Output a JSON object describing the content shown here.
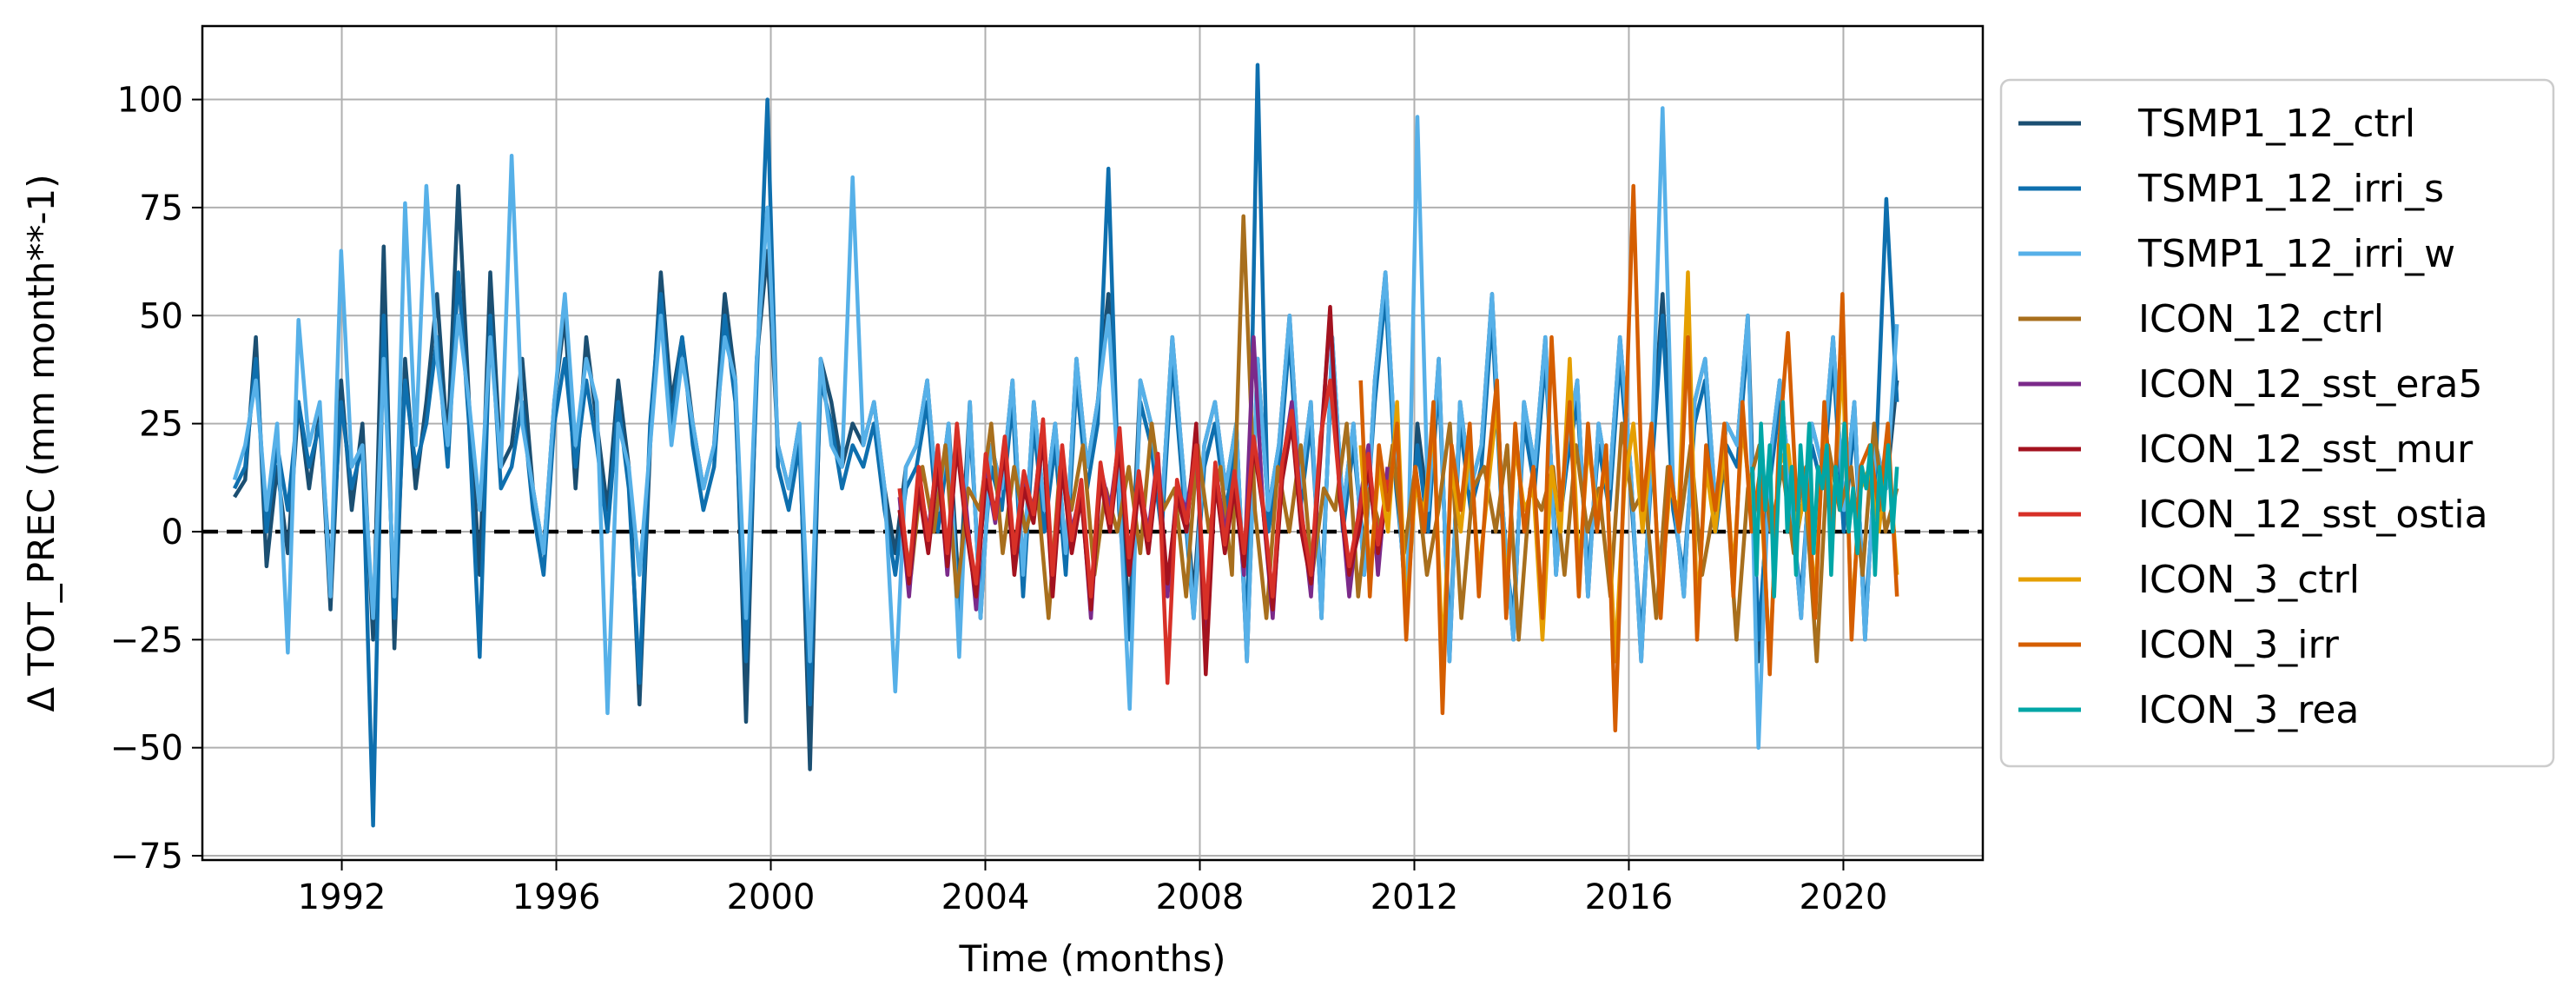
{
  "chart_data": {
    "type": "line",
    "xlabel": "Time (months)",
    "ylabel": "Δ TOT_PREC (mm month**-1)",
    "xlim": [
      1989.4,
      2022.6
    ],
    "ylim": [
      -76,
      117
    ],
    "xticks": [
      1992,
      1996,
      2000,
      2004,
      2008,
      2012,
      2016,
      2020
    ],
    "xtick_labels": [
      "1992",
      "1996",
      "2000",
      "2004",
      "2008",
      "2012",
      "2016",
      "2020"
    ],
    "yticks": [
      -75,
      -50,
      -25,
      0,
      25,
      50,
      75,
      100
    ],
    "ytick_labels": [
      "−75",
      "−50",
      "−25",
      "0",
      "25",
      "50",
      "75",
      "100"
    ],
    "grid": true,
    "zero_line": {
      "y": 0,
      "style": "dashed",
      "color": "#000000"
    },
    "legend": {
      "position": "outside-right"
    },
    "series": [
      {
        "name": "TSMP1_12_ctrl",
        "color": "#1b4f72",
        "x_start": 1990.0,
        "x_end": 2021.0,
        "values": [
          8,
          12,
          45,
          -8,
          15,
          -5,
          30,
          10,
          28,
          -18,
          35,
          5,
          25,
          -25,
          66,
          -27,
          40,
          10,
          30,
          55,
          20,
          80,
          30,
          -10,
          60,
          15,
          20,
          40,
          10,
          -5,
          30,
          50,
          10,
          45,
          25,
          5,
          35,
          15,
          -40,
          20,
          60,
          30,
          45,
          25,
          10,
          20,
          55,
          35,
          -44,
          40,
          65,
          20,
          10,
          25,
          -55,
          40,
          30,
          15,
          25,
          20,
          30,
          10,
          -5,
          15,
          20,
          35,
          5,
          25,
          -15,
          30,
          -20,
          20,
          10,
          35,
          -10,
          30,
          5,
          25,
          -5,
          40,
          15,
          30,
          55,
          10,
          -20,
          35,
          25,
          5,
          45,
          15,
          -15,
          20,
          30,
          10,
          25,
          -30,
          40,
          5,
          20,
          50,
          10,
          30,
          -20,
          45,
          5,
          25,
          -10,
          35,
          60,
          15,
          -20,
          25,
          5,
          40,
          -30,
          30,
          10,
          20,
          55,
          5,
          -25,
          30,
          15,
          45,
          -10,
          20,
          35,
          -15,
          25,
          10,
          45,
          15,
          -30,
          20,
          55,
          10,
          -15,
          30,
          40,
          5,
          25,
          20,
          50,
          -30,
          15,
          35,
          10,
          -20,
          25,
          15,
          45,
          5,
          30,
          -25,
          20,
          10,
          35
        ]
      },
      {
        "name": "TSMP1_12_irri_s",
        "color": "#0e6fae",
        "x_start": 1990.0,
        "x_end": 2021.0,
        "values": [
          10,
          15,
          40,
          0,
          20,
          5,
          30,
          15,
          25,
          -10,
          30,
          10,
          20,
          -68,
          50,
          -20,
          35,
          15,
          25,
          45,
          15,
          60,
          25,
          -29,
          50,
          10,
          15,
          30,
          5,
          -10,
          25,
          40,
          15,
          35,
          20,
          0,
          30,
          10,
          -35,
          25,
          55,
          25,
          45,
          20,
          5,
          15,
          50,
          30,
          -30,
          35,
          100,
          15,
          5,
          20,
          -40,
          35,
          25,
          10,
          20,
          15,
          25,
          5,
          -10,
          10,
          15,
          30,
          0,
          20,
          -20,
          25,
          -15,
          15,
          5,
          30,
          -15,
          25,
          0,
          20,
          -10,
          35,
          10,
          25,
          84,
          5,
          -25,
          30,
          20,
          0,
          40,
          10,
          -20,
          15,
          25,
          5,
          20,
          -25,
          108,
          0,
          15,
          45,
          5,
          25,
          -15,
          40,
          0,
          20,
          -5,
          30,
          55,
          10,
          -15,
          20,
          0,
          35,
          -25,
          25,
          5,
          15,
          50,
          0,
          -20,
          25,
          10,
          40,
          -5,
          15,
          30,
          -10,
          20,
          5,
          40,
          10,
          -25,
          15,
          50,
          5,
          -10,
          25,
          35,
          0,
          20,
          15,
          45,
          -25,
          10,
          30,
          5,
          -15,
          20,
          10,
          40,
          0,
          25,
          -20,
          15,
          77,
          30
        ]
      },
      {
        "name": "TSMP1_12_irri_w",
        "color": "#56b0e8",
        "x_start": 1990.0,
        "x_end": 2021.0,
        "values": [
          12,
          20,
          35,
          5,
          25,
          -28,
          49,
          20,
          30,
          -15,
          65,
          15,
          20,
          -20,
          40,
          -15,
          76,
          20,
          80,
          40,
          20,
          50,
          30,
          5,
          45,
          15,
          87,
          25,
          10,
          -5,
          30,
          55,
          20,
          40,
          30,
          -42,
          25,
          15,
          -10,
          20,
          50,
          20,
          40,
          25,
          10,
          20,
          45,
          35,
          -20,
          40,
          75,
          20,
          10,
          25,
          -30,
          40,
          20,
          15,
          82,
          20,
          30,
          10,
          -37,
          15,
          20,
          35,
          5,
          25,
          -29,
          30,
          -20,
          20,
          10,
          35,
          -10,
          30,
          5,
          25,
          -5,
          40,
          15,
          30,
          50,
          10,
          -41,
          35,
          25,
          5,
          45,
          15,
          -20,
          20,
          30,
          10,
          25,
          -30,
          40,
          5,
          20,
          50,
          10,
          30,
          -20,
          45,
          5,
          25,
          -10,
          35,
          60,
          15,
          -20,
          96,
          5,
          40,
          -30,
          30,
          10,
          20,
          55,
          5,
          -25,
          30,
          15,
          45,
          -10,
          20,
          35,
          -15,
          25,
          10,
          45,
          15,
          -30,
          20,
          98,
          10,
          -15,
          30,
          40,
          5,
          25,
          20,
          50,
          -50,
          15,
          35,
          10,
          -20,
          25,
          15,
          45,
          5,
          30,
          -25,
          20,
          10,
          48
        ]
      },
      {
        "name": "ICON_12_ctrl",
        "color": "#a86f1d",
        "x_start": 2002.4,
        "x_end": 2021.0,
        "values": [
          5,
          -10,
          15,
          0,
          20,
          -15,
          10,
          5,
          25,
          -5,
          15,
          0,
          10,
          -20,
          15,
          5,
          20,
          -10,
          10,
          0,
          15,
          -5,
          25,
          5,
          10,
          -15,
          20,
          0,
          15,
          -10,
          73,
          5,
          -20,
          15,
          0,
          20,
          -10,
          10,
          5,
          25,
          -15,
          10,
          0,
          20,
          -5,
          15,
          -10,
          5,
          25,
          -20,
          10,
          15,
          0,
          20,
          -25,
          10,
          5,
          15,
          -10,
          20,
          0,
          10,
          -15,
          25,
          5,
          10,
          -20,
          15,
          0,
          20,
          -10,
          5,
          15,
          -25,
          10,
          20,
          0,
          15,
          -5,
          10,
          -30,
          20,
          5,
          15,
          -10,
          25,
          0,
          10
        ]
      },
      {
        "name": "ICON_12_sst_era5",
        "color": "#7b2a8a",
        "x_start": 2002.4,
        "x_end": 2011.5,
        "values": [
          8,
          -15,
          12,
          0,
          18,
          -10,
          22,
          5,
          -18,
          15,
          2,
          20,
          -8,
          12,
          5,
          25,
          -12,
          18,
          0,
          10,
          -20,
          15,
          5,
          22,
          -8,
          12,
          0,
          18,
          -15,
          10,
          5,
          20,
          -25,
          15,
          0,
          12,
          -10,
          45,
          5,
          -20,
          15,
          30,
          5,
          -15,
          20,
          50,
          10,
          -15,
          5,
          20,
          -10,
          15
        ]
      },
      {
        "name": "ICON_12_sst_mur",
        "color": "#a3121f",
        "x_start": 2002.4,
        "x_end": 2011.5,
        "values": [
          5,
          -12,
          10,
          -5,
          15,
          -8,
          20,
          0,
          -15,
          12,
          5,
          18,
          -10,
          10,
          2,
          22,
          -15,
          15,
          -5,
          8,
          -18,
          12,
          0,
          20,
          -10,
          10,
          -5,
          15,
          -12,
          8,
          0,
          25,
          -33,
          12,
          -5,
          10,
          -8,
          20,
          5,
          -18,
          12,
          25,
          0,
          -12,
          18,
          52,
          8,
          -10,
          0,
          15,
          -5,
          10
        ]
      },
      {
        "name": "ICON_12_sst_ostia",
        "color": "#d73027",
        "x_start": 2002.4,
        "x_end": 2011.5,
        "values": [
          10,
          -10,
          15,
          -2,
          20,
          -5,
          25,
          2,
          -12,
          18,
          3,
          22,
          -5,
          14,
          4,
          26,
          -10,
          20,
          -2,
          12,
          -15,
          16,
          2,
          24,
          -6,
          14,
          -2,
          18,
          -35,
          12,
          2,
          20,
          -20,
          16,
          -3,
          14,
          -5,
          22,
          6,
          -15,
          16,
          28,
          4,
          -10,
          22,
          35,
          10,
          -8,
          4,
          18,
          -3,
          12
        ]
      },
      {
        "name": "ICON_3_ctrl",
        "color": "#e59f00",
        "x_start": 2011.0,
        "x_end": 2021.0,
        "values": [
          20,
          -10,
          15,
          0,
          30,
          -20,
          10,
          5,
          25,
          -30,
          15,
          0,
          20,
          -10,
          10,
          30,
          -15,
          20,
          5,
          10,
          -25,
          15,
          0,
          40,
          -10,
          20,
          5,
          15,
          -30,
          10,
          25,
          0,
          20,
          -15,
          10,
          5,
          60,
          -20,
          15,
          0,
          20,
          -10,
          25,
          5,
          10,
          -30,
          15,
          20,
          0,
          10,
          -15,
          25,
          5,
          40,
          -20,
          10,
          15,
          0,
          20,
          -10
        ]
      },
      {
        "name": "ICON_3_irr",
        "color": "#d55e00",
        "x_start": 2011.0,
        "x_end": 2021.0,
        "values": [
          35,
          -15,
          20,
          5,
          25,
          -25,
          15,
          0,
          30,
          -42,
          20,
          5,
          25,
          -15,
          15,
          35,
          -20,
          25,
          0,
          15,
          -20,
          45,
          5,
          30,
          -15,
          25,
          0,
          20,
          -46,
          15,
          80,
          5,
          25,
          -20,
          15,
          0,
          45,
          -25,
          20,
          5,
          25,
          -15,
          30,
          0,
          15,
          -33,
          20,
          46,
          5,
          15,
          -20,
          30,
          0,
          55,
          -25,
          15,
          20,
          5,
          25,
          -15
        ]
      },
      {
        "name": "ICON_3_rea",
        "color": "#00a6a6",
        "x_start": 2018.3,
        "x_end": 2021.0,
        "values": [
          15,
          -10,
          25,
          5,
          20,
          -15,
          10,
          30,
          0,
          15,
          -10,
          20,
          5,
          25,
          -5,
          15,
          10,
          20,
          -10,
          15,
          5,
          25,
          0,
          10,
          -5,
          15,
          10,
          20,
          -10,
          15,
          5,
          20,
          0,
          15
        ]
      }
    ]
  }
}
